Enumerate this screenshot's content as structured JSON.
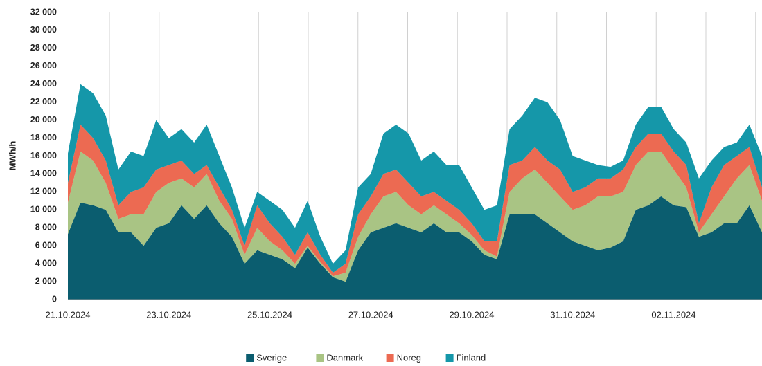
{
  "chart_data": {
    "type": "stacked-area",
    "y_label": "MWh/h",
    "categories": [
      "21.10.2024",
      null,
      null,
      null,
      null,
      null,
      null,
      null,
      "23.10.2024",
      null,
      null,
      null,
      null,
      null,
      null,
      null,
      "25.10.2024",
      null,
      null,
      null,
      null,
      null,
      null,
      null,
      "27.10.2024",
      null,
      null,
      null,
      null,
      null,
      null,
      null,
      "29.10.2024",
      null,
      null,
      null,
      null,
      null,
      null,
      null,
      "31.10.2024",
      null,
      null,
      null,
      null,
      null,
      null,
      null,
      "02.11.2024",
      null,
      null,
      null,
      null,
      null,
      null,
      null
    ],
    "series": [
      {
        "name": "Sverige",
        "color": "#0b5d6f",
        "values": [
          7300,
          10800,
          10500,
          10000,
          7500,
          7500,
          6000,
          8000,
          8500,
          10500,
          9000,
          10500,
          8500,
          7000,
          4000,
          5500,
          5000,
          4500,
          3500,
          5800,
          4000,
          2500,
          2000,
          5500,
          7500,
          8000,
          8500,
          8000,
          7500,
          8500,
          7500,
          7500,
          6500,
          5000,
          4500,
          9500,
          9500,
          9500,
          8500,
          7500,
          6500,
          6000,
          5500,
          5800,
          6500,
          10000,
          10500,
          11500,
          10500,
          10300,
          7000,
          7500,
          8500,
          8500,
          10500,
          7500
        ]
      },
      {
        "name": "Danmark",
        "color": "#a9c484",
        "values": [
          3500,
          5700,
          5000,
          3000,
          1500,
          2000,
          3500,
          4000,
          4500,
          3000,
          3500,
          3500,
          2500,
          2000,
          1000,
          2500,
          1500,
          1000,
          500,
          200,
          200,
          100,
          1000,
          1500,
          2000,
          3500,
          3500,
          2500,
          2000,
          2000,
          2000,
          1000,
          700,
          500,
          300,
          2500,
          4000,
          5000,
          4500,
          4000,
          3500,
          4500,
          6000,
          5700,
          5500,
          5000,
          6000,
          5000,
          4000,
          2200,
          500,
          2000,
          3000,
          5000,
          4500,
          3500
        ]
      },
      {
        "name": "Noreg",
        "color": "#ec6a52",
        "values": [
          2200,
          3000,
          2500,
          2500,
          1500,
          2500,
          3000,
          2500,
          2000,
          2000,
          1500,
          1000,
          1500,
          1000,
          1000,
          2500,
          2000,
          1500,
          1000,
          1500,
          800,
          400,
          1000,
          2500,
          2000,
          2500,
          2500,
          2500,
          2000,
          1500,
          1500,
          1500,
          1300,
          1000,
          1700,
          3000,
          2000,
          2500,
          2500,
          3000,
          2000,
          2000,
          2000,
          2000,
          2500,
          2000,
          2000,
          2000,
          2000,
          2500,
          1000,
          3000,
          3500,
          2500,
          2000,
          1500
        ]
      },
      {
        "name": "Finland",
        "color": "#1597a9",
        "values": [
          3300,
          4500,
          5000,
          5000,
          4000,
          4500,
          3500,
          5500,
          3000,
          3500,
          3500,
          4500,
          3500,
          2500,
          2000,
          1500,
          2500,
          3000,
          3000,
          3500,
          2000,
          1000,
          1500,
          3000,
          2500,
          4500,
          5000,
          5500,
          4000,
          4500,
          4000,
          5000,
          4000,
          3500,
          4000,
          4000,
          5000,
          5500,
          6500,
          5500,
          4000,
          3000,
          1500,
          1300,
          1000,
          2500,
          3000,
          3000,
          2500,
          2500,
          5000,
          3000,
          2000,
          1500,
          2500,
          3500
        ]
      }
    ],
    "ylim": [
      0,
      32000
    ],
    "yticks": [
      0,
      {
        "value": 2000,
        "label": "2 000"
      },
      {
        "value": 4000,
        "label": "4 000"
      },
      {
        "value": 6000,
        "label": "6 000"
      },
      {
        "value": 8000,
        "label": "8 000"
      },
      {
        "value": 10000,
        "label": "10 000"
      },
      {
        "value": 12000,
        "label": "12 000"
      },
      {
        "value": 14000,
        "label": "14 000"
      },
      {
        "value": 16000,
        "label": "16 000"
      },
      {
        "value": 18000,
        "label": "18 000"
      },
      {
        "value": 20000,
        "label": "20 000"
      },
      {
        "value": 22000,
        "label": "22 000"
      },
      {
        "value": 24000,
        "label": "24 000"
      },
      {
        "value": 26000,
        "label": "26 000"
      },
      {
        "value": 28000,
        "label": "28 000"
      },
      {
        "value": 30000,
        "label": "30 000"
      },
      {
        "value": 32000,
        "label": "32 000"
      }
    ],
    "grid": false,
    "legend": "bottom"
  }
}
